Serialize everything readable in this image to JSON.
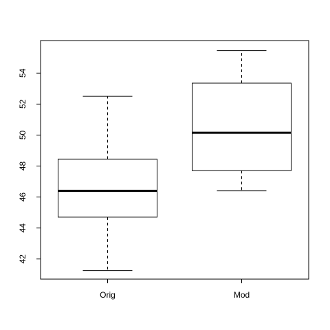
{
  "chart_data": {
    "type": "boxplot",
    "title": "",
    "xlabel": "",
    "ylabel": "",
    "categories": [
      "Orig",
      "Mod"
    ],
    "boxes": [
      {
        "label": "Orig",
        "whisker_low": 41.25,
        "q1": 44.7,
        "median": 46.4,
        "q3": 48.45,
        "whisker_high": 52.5
      },
      {
        "label": "Mod",
        "whisker_low": 46.4,
        "q1": 47.7,
        "median": 50.15,
        "q3": 53.35,
        "whisker_high": 55.45
      }
    ],
    "ylim": [
      40.7,
      56.1
    ],
    "yticks": [
      42,
      44,
      46,
      48,
      50,
      52,
      54
    ],
    "ytick_labels": [
      "42",
      "44",
      "46",
      "48",
      "50",
      "52",
      "54"
    ],
    "grid": false,
    "colors": {
      "box_fill": "#ffffff",
      "stroke": "#000000"
    }
  }
}
